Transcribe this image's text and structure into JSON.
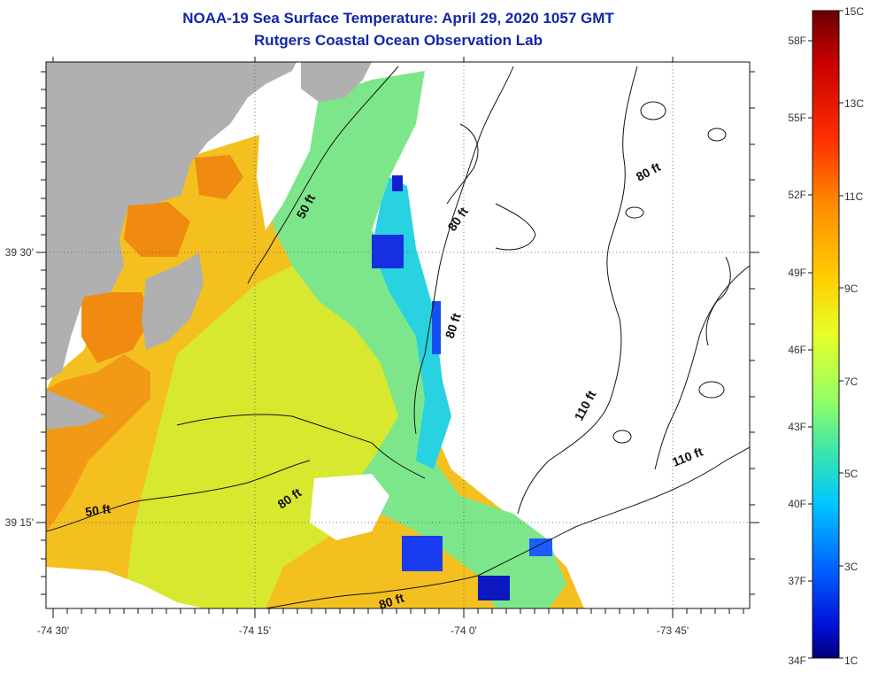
{
  "title": {
    "line1": "NOAA-19 Sea Surface Temperature:  April 29, 2020 1057 GMT",
    "line2": "Rutgers Coastal Ocean Observation Lab"
  },
  "axes": {
    "longitude_labels": [
      "-74 30'",
      "-74 15'",
      "-74 0'",
      "-73 45'"
    ],
    "latitude_labels": [
      "39 30'",
      "39 15'"
    ]
  },
  "contour_labels": [
    "50 ft",
    "50 ft",
    "80 ft",
    "80 ft",
    "80 ft",
    "80 ft",
    "80 ft",
    "110 ft",
    "110 ft"
  ],
  "colorbar": {
    "celsius_labels": [
      "15C",
      "13C",
      "11C",
      "9C",
      "7C",
      "5C",
      "3C",
      "1C"
    ],
    "fahrenheit_labels": [
      "58F",
      "55F",
      "52F",
      "49F",
      "46F",
      "43F",
      "40F",
      "37F",
      "34F"
    ],
    "colors": [
      "#6b0000",
      "#c80000",
      "#ff3000",
      "#ff8c00",
      "#ffd200",
      "#e6ff28",
      "#96ff64",
      "#3ce6aa",
      "#00c8ff",
      "#0064ff",
      "#0010d8",
      "#00007a"
    ]
  },
  "colors": {
    "land": "#b0b0b0",
    "ocean_no_data": "#ffffff",
    "title": "#1226a8"
  }
}
